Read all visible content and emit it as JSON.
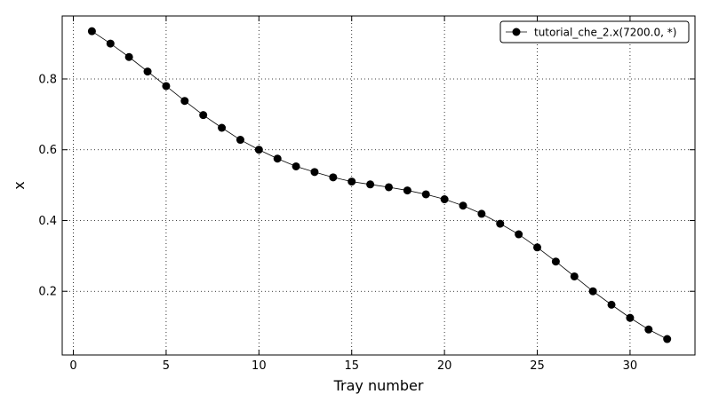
{
  "chart_data": {
    "type": "line",
    "title": "",
    "xlabel": "Tray number",
    "ylabel": "x",
    "xlim": [
      -0.6,
      33.5
    ],
    "ylim": [
      0.02,
      0.978
    ],
    "xticks": [
      0,
      5,
      10,
      15,
      20,
      25,
      30
    ],
    "yticks": [
      0.2,
      0.4,
      0.6,
      0.8
    ],
    "grid": true,
    "legend_position": "top-right",
    "colors": {
      "series": "#000000",
      "grid": "#000000"
    },
    "series": [
      {
        "name": "tutorial_che_2.x(7200.0, *)",
        "marker": "circle",
        "x": [
          1,
          2,
          3,
          4,
          5,
          6,
          7,
          8,
          9,
          10,
          11,
          12,
          13,
          14,
          15,
          16,
          17,
          18,
          19,
          20,
          21,
          22,
          23,
          24,
          25,
          26,
          27,
          28,
          29,
          30,
          31,
          32
        ],
        "values": [
          0.935,
          0.9,
          0.862,
          0.821,
          0.78,
          0.738,
          0.698,
          0.662,
          0.628,
          0.6,
          0.575,
          0.553,
          0.537,
          0.522,
          0.51,
          0.502,
          0.494,
          0.485,
          0.474,
          0.46,
          0.442,
          0.419,
          0.391,
          0.361,
          0.324,
          0.284,
          0.242,
          0.2,
          0.162,
          0.125,
          0.092,
          0.065
        ]
      }
    ]
  }
}
